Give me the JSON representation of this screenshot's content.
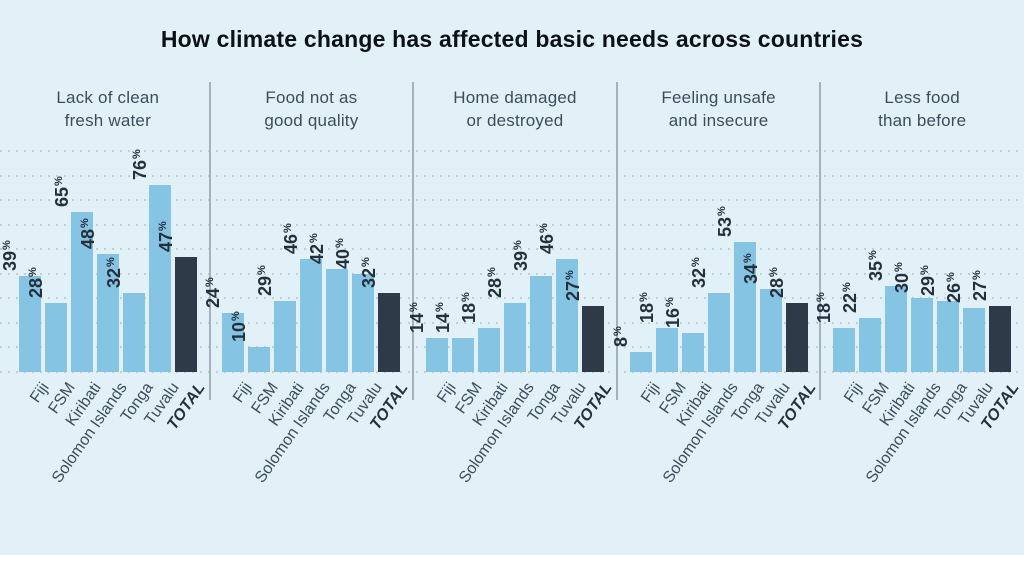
{
  "title": "How climate change has affected basic needs across countries",
  "chart_data": {
    "type": "bar",
    "title": "How climate change has affected basic needs across countries",
    "unit": "%",
    "categories": [
      "Fiji",
      "FSM",
      "Kiribati",
      "Solomon Islands",
      "Tonga",
      "Tuvalu",
      "TOTAL"
    ],
    "total_category": "TOTAL",
    "panels": [
      {
        "label_lines": [
          "Lack of clean",
          "fresh water"
        ],
        "values": [
          39,
          28,
          65,
          48,
          32,
          76,
          47
        ]
      },
      {
        "label_lines": [
          "Food not as",
          "good quality"
        ],
        "values": [
          24,
          10,
          29,
          46,
          42,
          40,
          32
        ]
      },
      {
        "label_lines": [
          "Home damaged",
          "or destroyed"
        ],
        "values": [
          14,
          14,
          18,
          28,
          39,
          46,
          27
        ]
      },
      {
        "label_lines": [
          "Feeling unsafe",
          "and insecure"
        ],
        "values": [
          8,
          18,
          16,
          32,
          53,
          34,
          28
        ]
      },
      {
        "label_lines": [
          "Less food",
          "than before"
        ],
        "values": [
          18,
          22,
          35,
          30,
          29,
          26,
          27
        ]
      }
    ],
    "value_labels_shown": true,
    "ylim": [
      0,
      100
    ],
    "gridlines": {
      "style": "dotted",
      "min_pct": 0,
      "max_pct": 90,
      "step_pct": 10
    },
    "legend": "none",
    "colors": {
      "background": "#e2f1f7",
      "bar": "#85c4e3",
      "total_bar": "#2e3a47",
      "gridline": "#bdd0d8",
      "divider": "#a3b2bb",
      "title_text": "#0c1117",
      "panel_header_text": "#3d4d5c",
      "country_label_text": "#3d4d5c",
      "value_label_text": "#25303d"
    }
  }
}
